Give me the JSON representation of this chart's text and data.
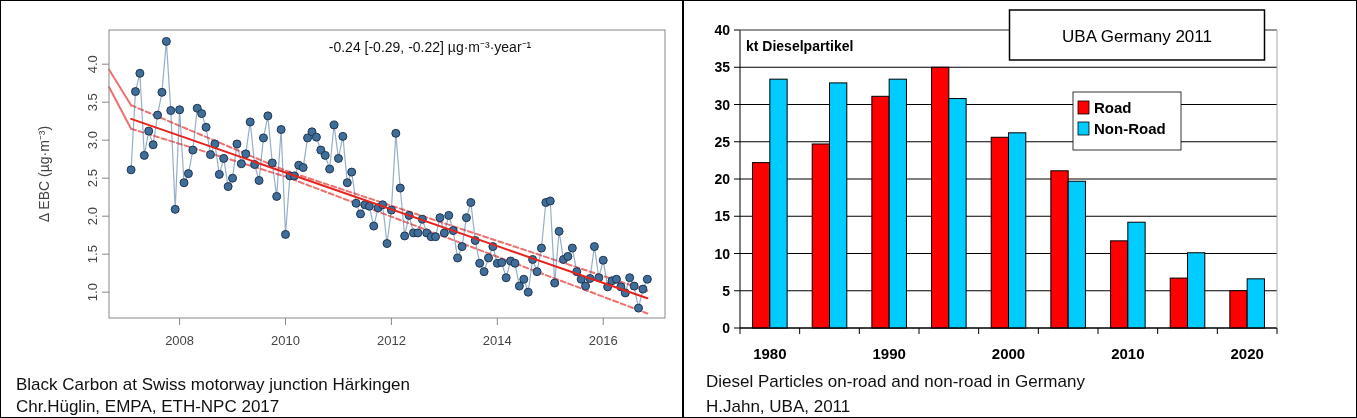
{
  "chart_data": [
    {
      "type": "line",
      "ylabel": "Δ EBC (µg·m⁻³)",
      "xlim": [
        "2006-09",
        "2017-03"
      ],
      "xticks": [
        {
          "value": "2008",
          "label": "2008"
        },
        {
          "value": "2010",
          "label": "2010"
        },
        {
          "value": "2012",
          "label": "2012"
        },
        {
          "value": "2014",
          "label": "2014"
        },
        {
          "value": "2016",
          "label": "2016"
        }
      ],
      "ylim": [
        0.66,
        4.45
      ],
      "yticks": [
        {
          "value": 1,
          "label": "1.0"
        },
        {
          "value": 1.5,
          "label": "1.5"
        },
        {
          "value": 2,
          "label": "2.0"
        },
        {
          "value": 2.5,
          "label": "2.5"
        },
        {
          "value": 3,
          "label": "3.0"
        },
        {
          "value": 3.5,
          "label": "3.5"
        },
        {
          "value": 4,
          "label": "4.0"
        }
      ],
      "grid": false,
      "legend": false,
      "annotations": [
        "-0.24 [-0.29, -0.22]  µg·m⁻³·year⁻¹",
        "Black Carbon at Swiss motorway junction Härkingen",
        "Chr.Hüglin, EMPA, ETH-NPC 2017"
      ],
      "series": [
        {
          "color": "#f07070",
          "line_style": "solid",
          "x": [
            "2006-09",
            "2007-02"
          ],
          "values": [
            3.93,
            3.46
          ]
        },
        {
          "color": "#f07070",
          "line_style": "solid",
          "x": [
            "2006-09",
            "2007-02"
          ],
          "values": [
            3.7,
            3.15
          ]
        },
        {
          "color": "#f07070",
          "line_style": "dashed",
          "x": [
            "2007-02",
            "2010-01",
            "2016-11"
          ],
          "values": [
            3.46,
            2.6,
            1.02
          ]
        },
        {
          "color": "#f07070",
          "line_style": "dashed",
          "x": [
            "2007-02",
            "2010-01",
            "2016-11"
          ],
          "values": [
            3.15,
            2.52,
            0.72
          ]
        },
        {
          "color": "#3f6e9a",
          "marker": "circle",
          "line_style": "solid",
          "x": [
            "2007-02",
            "2007-03",
            "2007-04",
            "2007-05",
            "2007-06",
            "2007-07",
            "2007-08",
            "2007-09",
            "2007-10",
            "2007-11",
            "2007-12",
            "2008-01",
            "2008-02",
            "2008-03",
            "2008-04",
            "2008-05",
            "2008-06",
            "2008-07",
            "2008-08",
            "2008-09",
            "2008-10",
            "2008-11",
            "2008-12",
            "2009-01",
            "2009-02",
            "2009-03",
            "2009-04",
            "2009-05",
            "2009-06",
            "2009-07",
            "2009-08",
            "2009-09",
            "2009-10",
            "2009-11",
            "2009-12",
            "2010-01",
            "2010-02",
            "2010-03",
            "2010-04",
            "2010-05",
            "2010-06",
            "2010-07",
            "2010-08",
            "2010-09",
            "2010-10",
            "2010-11",
            "2010-12",
            "2011-01",
            "2011-02",
            "2011-03",
            "2011-04",
            "2011-05",
            "2011-06",
            "2011-07",
            "2011-08",
            "2011-09",
            "2011-10",
            "2011-11",
            "2011-12",
            "2012-01",
            "2012-02",
            "2012-03",
            "2012-04",
            "2012-05",
            "2012-06",
            "2012-07",
            "2012-08",
            "2012-09",
            "2012-10",
            "2012-11",
            "2012-12",
            "2013-01",
            "2013-02",
            "2013-03",
            "2013-04",
            "2013-05",
            "2013-06",
            "2013-07",
            "2013-08",
            "2013-09",
            "2013-10",
            "2013-11",
            "2013-12",
            "2014-01",
            "2014-02",
            "2014-03",
            "2014-04",
            "2014-05",
            "2014-06",
            "2014-07",
            "2014-08",
            "2014-09",
            "2014-10",
            "2014-11",
            "2014-12",
            "2015-01",
            "2015-02",
            "2015-03",
            "2015-04",
            "2015-05",
            "2015-06",
            "2015-07",
            "2015-08",
            "2015-09",
            "2015-10",
            "2015-11",
            "2015-12",
            "2016-01",
            "2016-02",
            "2016-03",
            "2016-04",
            "2016-05",
            "2016-06",
            "2016-07",
            "2016-08",
            "2016-09",
            "2016-10",
            "2016-11"
          ],
          "values": [
            2.61,
            3.64,
            3.88,
            2.8,
            3.12,
            2.94,
            3.33,
            3.63,
            4.3,
            3.39,
            2.09,
            3.4,
            2.44,
            2.56,
            2.87,
            3.42,
            3.35,
            3.17,
            2.81,
            2.95,
            2.55,
            2.76,
            2.39,
            2.5,
            2.95,
            2.69,
            2.82,
            3.24,
            2.68,
            2.47,
            3.03,
            3.32,
            2.7,
            2.26,
            3.14,
            1.76,
            2.53,
            2.53,
            2.67,
            2.64,
            3.03,
            3.11,
            3.04,
            2.87,
            2.8,
            2.62,
            3.2,
            2.76,
            3.05,
            2.44,
            2.58,
            2.17,
            2.03,
            2.15,
            2.13,
            1.87,
            2.11,
            2.15,
            1.64,
            2.08,
            3.09,
            2.37,
            1.74,
            2.01,
            1.78,
            1.78,
            1.96,
            1.78,
            1.73,
            1.73,
            1.98,
            1.78,
            2.01,
            1.81,
            1.45,
            1.6,
            1.98,
            2.18,
            1.68,
            1.38,
            1.27,
            1.45,
            1.6,
            1.38,
            1.39,
            1.19,
            1.41,
            1.38,
            1.08,
            1.17,
            1.0,
            1.43,
            1.27,
            1.58,
            2.18,
            2.2,
            1.12,
            1.8,
            1.43,
            1.47,
            1.58,
            1.27,
            1.17,
            1.08,
            1.18,
            1.6,
            1.19,
            1.42,
            1.07,
            1.15,
            1.17,
            1.07,
            0.99,
            1.19,
            1.08,
            0.79,
            1.04,
            1.17
          ]
        },
        {
          "color": "#e8221c",
          "line_style": "solid",
          "x": [
            "2007-02",
            "2016-11"
          ],
          "values": [
            3.28,
            0.92
          ]
        }
      ]
    },
    {
      "type": "bar",
      "ylabel": "kt Dieselpartikel",
      "categories": [
        "1980",
        null,
        "1990",
        null,
        "2000",
        null,
        "2010",
        null,
        "2020"
      ],
      "ylim": [
        0,
        40
      ],
      "yticks": [
        0,
        5,
        10,
        15,
        20,
        25,
        30,
        35,
        40
      ],
      "grid": "y",
      "legend": "top right",
      "annotations": [
        "UBA Germany 2011",
        "Diesel Particles on-road and non-road in Germany",
        "H.Jahn, UBA, 2011"
      ],
      "series": [
        {
          "name": "Road",
          "color": "#ff0000",
          "values": [
            22.2,
            24.7,
            31.1,
            35.0,
            25.6,
            21.1,
            11.7,
            6.7,
            5.0
          ]
        },
        {
          "name": "Non-Road",
          "color": "#00ccff",
          "values": [
            33.4,
            32.9,
            33.4,
            30.8,
            26.2,
            19.7,
            14.2,
            10.1,
            6.6
          ]
        }
      ]
    }
  ]
}
